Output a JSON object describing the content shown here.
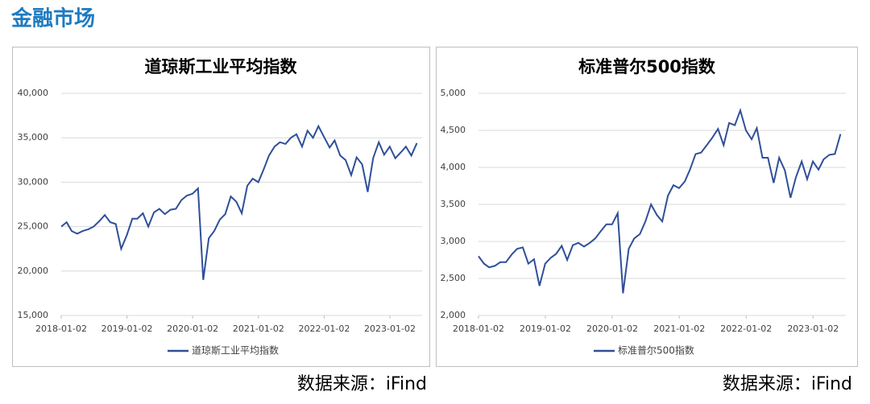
{
  "header": {
    "title": "金融市场"
  },
  "chart_data": [
    {
      "type": "line",
      "title": "道琼斯工业平均指数",
      "source": "数据来源：iFind",
      "x": [
        "2018-01-02",
        "2018-02-01",
        "2018-03-01",
        "2018-04-01",
        "2018-05-01",
        "2018-06-01",
        "2018-07-01",
        "2018-08-01",
        "2018-09-01",
        "2018-10-01",
        "2018-11-01",
        "2018-12-01",
        "2019-01-01",
        "2019-02-01",
        "2019-03-01",
        "2019-04-01",
        "2019-05-01",
        "2019-06-01",
        "2019-07-01",
        "2019-08-01",
        "2019-09-01",
        "2019-10-01",
        "2019-11-01",
        "2019-12-01",
        "2020-01-01",
        "2020-02-01",
        "2020-03-01",
        "2020-04-01",
        "2020-05-01",
        "2020-06-01",
        "2020-07-01",
        "2020-08-01",
        "2020-09-01",
        "2020-10-01",
        "2020-11-01",
        "2020-12-01",
        "2021-01-01",
        "2021-02-01",
        "2021-03-01",
        "2021-04-01",
        "2021-05-01",
        "2021-06-01",
        "2021-07-01",
        "2021-08-01",
        "2021-09-01",
        "2021-10-01",
        "2021-11-01",
        "2021-12-01",
        "2022-01-01",
        "2022-02-01",
        "2022-03-01",
        "2022-04-01",
        "2022-05-01",
        "2022-06-01",
        "2022-07-01",
        "2022-08-01",
        "2022-09-01",
        "2022-10-01",
        "2022-11-01",
        "2022-12-01",
        "2023-01-01",
        "2023-02-01",
        "2023-03-01",
        "2023-04-01",
        "2023-05-01",
        "2023-06-01"
      ],
      "series": [
        {
          "name": "道琼斯工业平均指数",
          "color": "#2f4f99",
          "values": [
            25000,
            25500,
            24500,
            24200,
            24500,
            24700,
            25000,
            25600,
            26300,
            25500,
            25300,
            22500,
            24000,
            25900,
            25900,
            26500,
            25000,
            26600,
            27000,
            26400,
            26900,
            27000,
            28000,
            28500,
            28700,
            29300,
            19000,
            23700,
            24500,
            25800,
            26400,
            28400,
            27800,
            26500,
            29600,
            30400,
            30000,
            31500,
            33000,
            34000,
            34500,
            34300,
            35000,
            35400,
            34000,
            35800,
            35000,
            36300,
            35100,
            33900,
            34700,
            33000,
            32500,
            30800,
            32800,
            32000,
            28900,
            32700,
            34500,
            33100,
            34000,
            32700,
            33300,
            34000,
            33000,
            34400
          ]
        }
      ],
      "xlim": [
        "2018-01-02",
        "2023-06-30"
      ],
      "xticks": [
        "2018-01-02",
        "2019-01-02",
        "2020-01-02",
        "2021-01-02",
        "2022-01-02",
        "2023-01-02"
      ],
      "ylim": [
        15000,
        40000
      ],
      "yticks": [
        {
          "value": 15000,
          "label": "15,000"
        },
        {
          "value": 20000,
          "label": "20,000"
        },
        {
          "value": 25000,
          "label": "25,000"
        },
        {
          "value": 30000,
          "label": "30,000"
        },
        {
          "value": 35000,
          "label": "35,000"
        },
        {
          "value": 40000,
          "label": "40,000"
        }
      ],
      "grid": true
    },
    {
      "type": "line",
      "title": "标准普尔500指数",
      "source": "数据来源：iFind",
      "x": [
        "2018-01-02",
        "2018-02-01",
        "2018-03-01",
        "2018-04-01",
        "2018-05-01",
        "2018-06-01",
        "2018-07-01",
        "2018-08-01",
        "2018-09-01",
        "2018-10-01",
        "2018-11-01",
        "2018-12-01",
        "2019-01-01",
        "2019-02-01",
        "2019-03-01",
        "2019-04-01",
        "2019-05-01",
        "2019-06-01",
        "2019-07-01",
        "2019-08-01",
        "2019-09-01",
        "2019-10-01",
        "2019-11-01",
        "2019-12-01",
        "2020-01-01",
        "2020-02-01",
        "2020-03-01",
        "2020-04-01",
        "2020-05-01",
        "2020-06-01",
        "2020-07-01",
        "2020-08-01",
        "2020-09-01",
        "2020-10-01",
        "2020-11-01",
        "2020-12-01",
        "2021-01-01",
        "2021-02-01",
        "2021-03-01",
        "2021-04-01",
        "2021-05-01",
        "2021-06-01",
        "2021-07-01",
        "2021-08-01",
        "2021-09-01",
        "2021-10-01",
        "2021-11-01",
        "2021-12-01",
        "2022-01-01",
        "2022-02-01",
        "2022-03-01",
        "2022-04-01",
        "2022-05-01",
        "2022-06-01",
        "2022-07-01",
        "2022-08-01",
        "2022-09-01",
        "2022-10-01",
        "2022-11-01",
        "2022-12-01",
        "2023-01-01",
        "2023-02-01",
        "2023-03-01",
        "2023-04-01",
        "2023-05-01",
        "2023-06-01"
      ],
      "series": [
        {
          "name": "标准普尔500指数",
          "color": "#2f4f99",
          "values": [
            2800,
            2700,
            2650,
            2670,
            2720,
            2720,
            2820,
            2900,
            2920,
            2700,
            2760,
            2400,
            2700,
            2780,
            2830,
            2940,
            2750,
            2950,
            2980,
            2930,
            2980,
            3040,
            3140,
            3230,
            3230,
            3380,
            2300,
            2900,
            3040,
            3100,
            3270,
            3500,
            3360,
            3270,
            3620,
            3760,
            3720,
            3810,
            3970,
            4180,
            4200,
            4300,
            4400,
            4520,
            4300,
            4600,
            4570,
            4770,
            4500,
            4380,
            4530,
            4130,
            4130,
            3790,
            4130,
            3960,
            3590,
            3870,
            4080,
            3840,
            4080,
            3970,
            4110,
            4170,
            4180,
            4450
          ]
        }
      ],
      "xlim": [
        "2018-01-02",
        "2023-06-30"
      ],
      "xticks": [
        "2018-01-02",
        "2019-01-02",
        "2020-01-02",
        "2021-01-02",
        "2022-01-02",
        "2023-01-02"
      ],
      "ylim": [
        2000,
        5000
      ],
      "yticks": [
        {
          "value": 2000,
          "label": "2,000"
        },
        {
          "value": 2500,
          "label": "2,500"
        },
        {
          "value": 3000,
          "label": "3,000"
        },
        {
          "value": 3500,
          "label": "3,500"
        },
        {
          "value": 4000,
          "label": "4,000"
        },
        {
          "value": 4500,
          "label": "4,500"
        },
        {
          "value": 5000,
          "label": "5,000"
        }
      ],
      "grid": true
    }
  ]
}
